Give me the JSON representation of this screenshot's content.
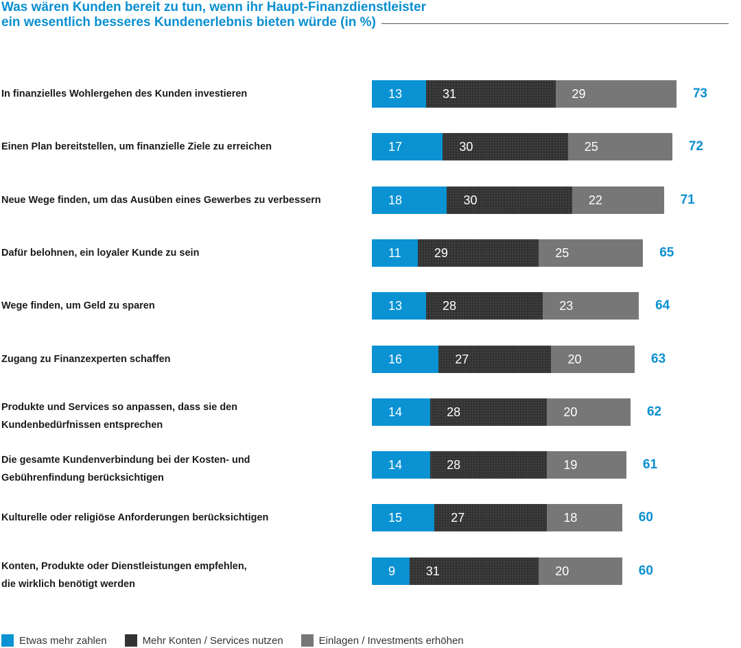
{
  "title": {
    "line1": "Was wären Kunden bereit zu tun, wenn ihr Haupt-Finanzdienstleister",
    "line2": "ein wesentlich besseres Kundenerlebnis bieten würde (in %)"
  },
  "colors": {
    "blue": "#0a92d3",
    "dark": "#333333",
    "gray": "#777777",
    "accent": "#0a8fd0"
  },
  "chart_data": {
    "type": "bar",
    "orientation": "horizontal",
    "stacked": true,
    "title": "Was wären Kunden bereit zu tun, wenn ihr Haupt-Finanzdienstleister ein wesentlich besseres Kundenerlebnis bieten würde (in %)",
    "categories": [
      [
        "In finanzielles Wohlergehen des Kunden investieren"
      ],
      [
        "Einen Plan bereitstellen, um finanzielle Ziele zu erreichen"
      ],
      [
        "Neue Wege finden, um das Ausüben eines Gewerbes zu verbessern"
      ],
      [
        "Dafür belohnen, ein loyaler Kunde zu sein"
      ],
      [
        "Wege finden, um Geld zu sparen"
      ],
      [
        "Zugang zu Finanzexperten schaffen"
      ],
      [
        "Produkte und Services so anpassen, dass sie den",
        "Kundenbedürfnissen entsprechen"
      ],
      [
        "Die gesamte Kundenverbindung bei der Kosten- und",
        "Gebührenfindung berücksichtigen"
      ],
      [
        "Kulturelle oder religiöse Anforderungen berücksichtigen"
      ],
      [
        "Konten, Produkte oder Dienstleistungen empfehlen,",
        "die wirklich benötigt werden"
      ]
    ],
    "series": [
      {
        "name": "Etwas mehr zahlen",
        "color": "#0a92d3",
        "values": [
          13,
          17,
          18,
          11,
          13,
          16,
          14,
          14,
          15,
          9
        ]
      },
      {
        "name": "Mehr Konten / Services nutzen",
        "color": "#333333",
        "values": [
          31,
          30,
          30,
          29,
          28,
          27,
          28,
          28,
          27,
          31
        ]
      },
      {
        "name": "Einlagen / Investments erhöhen",
        "color": "#777777",
        "values": [
          29,
          25,
          22,
          25,
          23,
          20,
          20,
          19,
          18,
          20
        ]
      }
    ],
    "totals": [
      73,
      72,
      71,
      65,
      64,
      63,
      62,
      61,
      60,
      60
    ],
    "legend_position": "bottom-left",
    "grid": false
  }
}
